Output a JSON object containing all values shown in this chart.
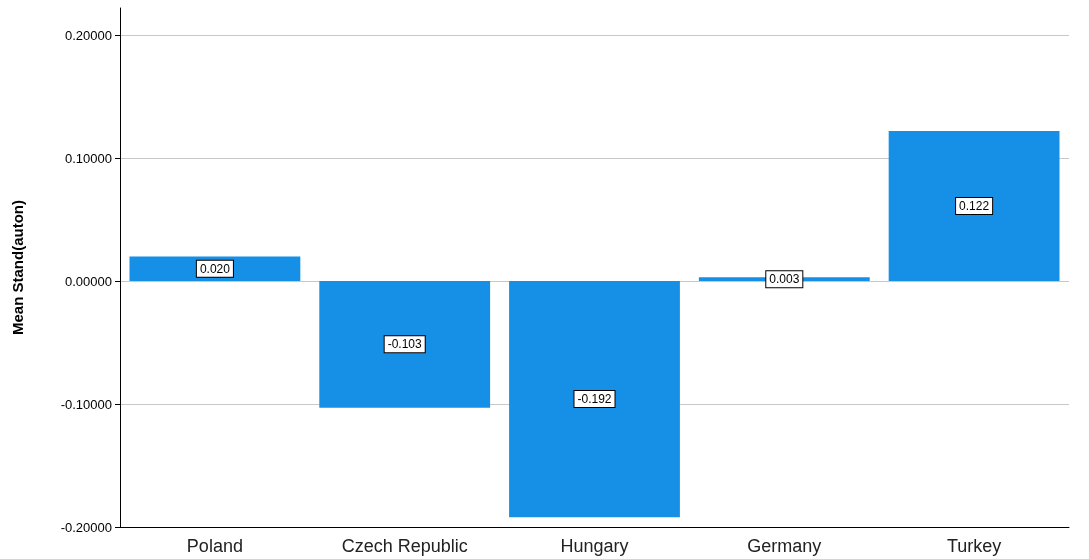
{
  "chart_data": {
    "type": "bar",
    "ylabel": "Mean Stand(auton)",
    "categories": [
      "Poland",
      "Czech Republic",
      "Hungary",
      "Germany",
      "Turkey"
    ],
    "values": [
      0.02,
      -0.103,
      -0.192,
      0.003,
      0.122
    ],
    "value_labels": [
      "0.020",
      "-0.103",
      "-0.192",
      "0.003",
      "0.122"
    ],
    "color": "#1590e6",
    "ylim": [
      -0.2,
      0.222
    ],
    "yticks": [
      {
        "value": -0.2,
        "label": "-0.20000"
      },
      {
        "value": -0.1,
        "label": "-0.10000"
      },
      {
        "value": 0,
        "label": "0.00000"
      },
      {
        "value": 0.1,
        "label": "0.10000"
      },
      {
        "value": 0.2,
        "label": "0.20000"
      }
    ],
    "grid": "y"
  }
}
